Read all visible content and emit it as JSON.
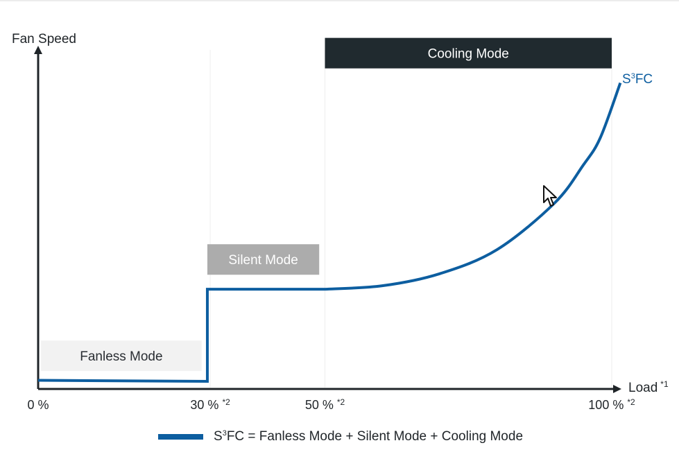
{
  "chart_data": {
    "type": "line",
    "ylabel": "Fan Speed",
    "xlabel": "Load",
    "xlabel_sup": "*1",
    "x_ticks": [
      {
        "value": 0,
        "label": "0 %",
        "sup": ""
      },
      {
        "value": 30,
        "label": "30 %",
        "sup": "*2"
      },
      {
        "value": 50,
        "label": "50 %",
        "sup": "*2"
      },
      {
        "value": 100,
        "label": "100 %",
        "sup": "*2"
      }
    ],
    "xlim": [
      0,
      100
    ],
    "ylim": [
      0,
      100
    ],
    "series": [
      {
        "name": "S³FC",
        "color": "#0d5ea0",
        "points": [
          [
            0,
            1.5
          ],
          [
            29.5,
            1.2
          ],
          [
            29.5,
            28
          ],
          [
            50,
            28
          ],
          [
            60,
            29
          ],
          [
            70,
            32.5
          ],
          [
            80,
            39.5
          ],
          [
            90,
            53
          ],
          [
            95,
            64
          ],
          [
            98,
            72
          ],
          [
            101.5,
            88
          ]
        ]
      }
    ],
    "modes": [
      {
        "label": "Fanless Mode",
        "x_start": 0.5,
        "x_end": 28.5,
        "y_level": 3,
        "bg": "#f2f2f2",
        "color": "#2a2e33"
      },
      {
        "label": "Silent Mode",
        "x_start": 29.5,
        "x_end": 49,
        "y_level": 31,
        "bg": "#acacac",
        "color": "#ffffff"
      },
      {
        "label": "Cooling Mode",
        "x_start": 50,
        "x_end": 100,
        "y_level": 91,
        "bg": "#202a2f",
        "color": "#ffffff"
      }
    ],
    "gridlines_x": [
      30,
      50,
      100
    ],
    "series_label": {
      "base": "S",
      "sup": "3",
      "rest": "FC"
    }
  },
  "legend": {
    "base": "S",
    "sup": "3",
    "rest": "FC = Fanless Mode + Silent Mode + Cooling Mode"
  }
}
